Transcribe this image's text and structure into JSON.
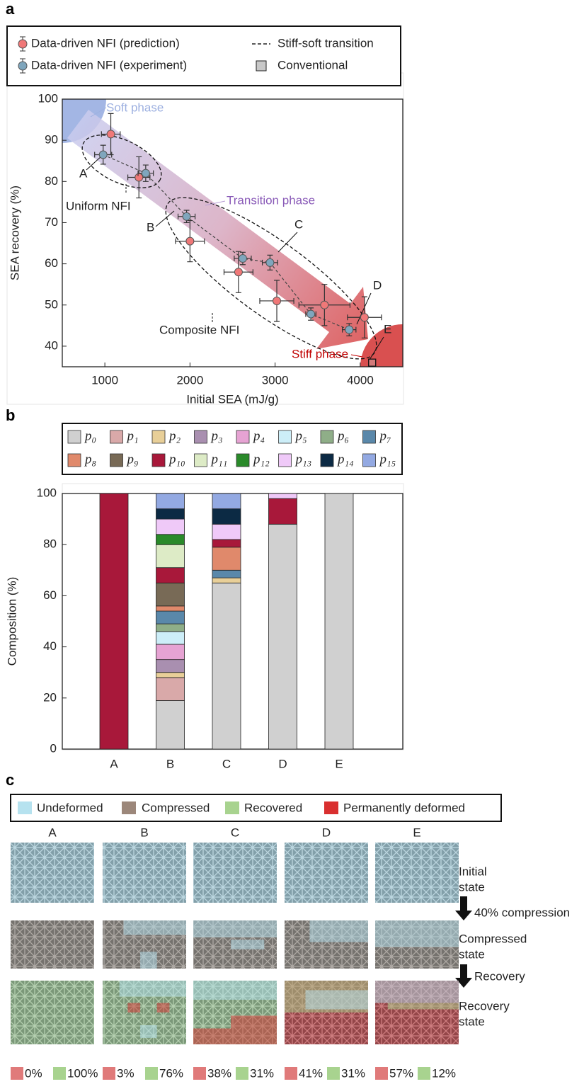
{
  "panel_labels": [
    "a",
    "b",
    "c"
  ],
  "chart_data": [
    {
      "type": "scatter",
      "xlabel": "Initial SEA (mJ/g)",
      "ylabel": "SEA recovery (%)",
      "xlim": [
        500,
        4500
      ],
      "xticks": [
        1000,
        2000,
        3000,
        4000
      ],
      "ylim": [
        35,
        100
      ],
      "yticks": [
        40,
        50,
        60,
        70,
        80,
        90,
        100
      ],
      "series": [
        {
          "name": "Data-driven NFI (prediction)",
          "color": "#f07878",
          "x": [
            1070,
            1400,
            2000,
            2570,
            3020,
            3580,
            4050
          ],
          "values": [
            91.5,
            81,
            65.5,
            58,
            51,
            50,
            47
          ],
          "xerr": [
            110,
            130,
            170,
            170,
            200,
            300,
            200
          ],
          "yerr": [
            5,
            5,
            5,
            5,
            5,
            5,
            5
          ]
        },
        {
          "name": "Data-driven NFI (experiment)",
          "color": "#7fa6bd",
          "x": [
            980,
            1480,
            1960,
            2620,
            2940,
            3420,
            3870
          ],
          "values": [
            86.5,
            82,
            71.5,
            61.3,
            60.3,
            47.8,
            44
          ],
          "xerr": [
            100,
            90,
            100,
            100,
            90,
            60,
            80
          ],
          "yerr": [
            2.3,
            2,
            1.5,
            1.5,
            1.8,
            1.5,
            1.5
          ]
        },
        {
          "name": "Conventional",
          "color": "#c8c8c8",
          "marker": "square",
          "x": [
            4140
          ],
          "values": [
            36
          ]
        }
      ],
      "trend_line": "Stiff-soft transition",
      "annotations": {
        "soft": "Soft phase",
        "transition": "Transition phase",
        "stiff": "Stiff phase",
        "uniform": "Uniform NFI",
        "composite": "Composite NFI",
        "A": "A",
        "B": "B",
        "C": "C",
        "D": "D",
        "E": "E"
      }
    },
    {
      "type": "bar",
      "stacked": true,
      "ylabel": "Composition (%)",
      "categories": [
        "A",
        "B",
        "C",
        "D",
        "E"
      ],
      "ylim": [
        0,
        100
      ],
      "yticks": [
        0,
        20,
        40,
        60,
        80,
        100
      ],
      "legend_columns": 8,
      "series": [
        {
          "name": "p₀",
          "color": "#d0d0d0",
          "values": [
            0,
            19,
            65,
            88,
            100
          ]
        },
        {
          "name": "p₁",
          "color": "#d9a9a9",
          "values": [
            0,
            9,
            0,
            0,
            0
          ]
        },
        {
          "name": "p₂",
          "color": "#e8cf98",
          "values": [
            0,
            2,
            2,
            0,
            0
          ]
        },
        {
          "name": "p₃",
          "color": "#a98fb0",
          "values": [
            0,
            5,
            0,
            0,
            0
          ]
        },
        {
          "name": "p₄",
          "color": "#e6a3d3",
          "values": [
            0,
            6,
            0,
            0,
            0
          ]
        },
        {
          "name": "p₅",
          "color": "#cdeef8",
          "values": [
            0,
            5,
            0,
            0,
            0
          ]
        },
        {
          "name": "p₆",
          "color": "#8fae88",
          "values": [
            0,
            3,
            0,
            0,
            0
          ]
        },
        {
          "name": "p₇",
          "color": "#5a88aa",
          "values": [
            0,
            5,
            3,
            0,
            0
          ]
        },
        {
          "name": "p₈",
          "color": "#e0896b",
          "values": [
            0,
            2,
            9,
            0,
            0
          ]
        },
        {
          "name": "p₉",
          "color": "#786a56",
          "values": [
            0,
            9,
            0,
            0,
            0
          ]
        },
        {
          "name": "p₁₀",
          "color": "#a8183a",
          "values": [
            100,
            6,
            3,
            10,
            0
          ]
        },
        {
          "name": "p₁₁",
          "color": "#ddebc6",
          "values": [
            0,
            9,
            0,
            0,
            0
          ]
        },
        {
          "name": "p₁₂",
          "color": "#2a8a2a",
          "values": [
            0,
            4,
            0,
            0,
            0
          ]
        },
        {
          "name": "p₁₃",
          "color": "#efc9f8",
          "values": [
            0,
            6,
            6,
            2,
            0
          ]
        },
        {
          "name": "p₁₄",
          "color": "#0c2a44",
          "values": [
            0,
            4,
            6,
            0,
            0
          ]
        },
        {
          "name": "p₁₅",
          "color": "#93a9e2",
          "values": [
            0,
            6,
            6,
            0,
            0
          ]
        }
      ]
    }
  ],
  "panel_c": {
    "legend": [
      {
        "name": "Undeformed",
        "color": "#b6e2ef"
      },
      {
        "name": "Compressed",
        "color": "#9c877a"
      },
      {
        "name": "Recovered",
        "color": "#a8d38f"
      },
      {
        "name": "Permanently deformed",
        "color": "#d92f2f"
      }
    ],
    "columns": [
      "A",
      "B",
      "C",
      "D",
      "E"
    ],
    "row_labels": [
      [
        "Initial",
        "state"
      ],
      [
        "Compressed",
        "state"
      ],
      [
        "Recovery",
        "state"
      ]
    ],
    "transitions": [
      "40% compression",
      "Recovery"
    ],
    "stats": [
      [
        "0%",
        "100%"
      ],
      [
        "3%",
        "76%"
      ],
      [
        "38%",
        "31%"
      ],
      [
        "41%",
        "31%"
      ],
      [
        "57%",
        "12%"
      ]
    ]
  }
}
